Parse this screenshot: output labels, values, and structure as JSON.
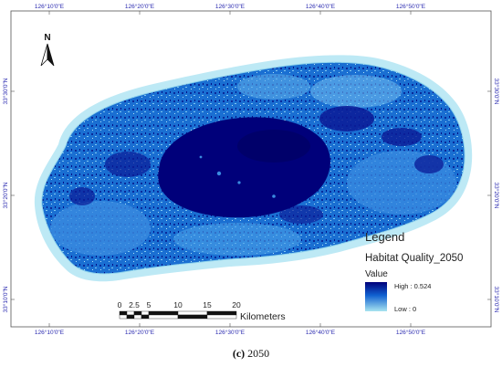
{
  "top_labels": [
    "126°10'0\"E",
    "126°20'0\"E",
    "126°30'0\"E",
    "126°40'0\"E",
    "126°50'0\"E"
  ],
  "bottom_labels": [
    "126°10'0\"E",
    "126°20'0\"E",
    "126°30'0\"E",
    "126°40'0\"E",
    "126°50'0\"E"
  ],
  "left_labels": [
    "33°30'0\"N",
    "33°20'0\"N",
    "33°10'0\"N"
  ],
  "right_labels": [
    "33°30'0\"N",
    "33°20'0\"N",
    "33°10'0\"N"
  ],
  "north_arrow": {
    "letter": "N"
  },
  "legend": {
    "title": "Legend",
    "layer": "Habitat Quality_2050",
    "value_label": "Value",
    "high": "High : 0.524",
    "low": "Low : 0",
    "high_value": 0.524,
    "low_value": 0,
    "colors": {
      "high": "#00007a",
      "mid": "#1060d0",
      "low": "#a8e4f0"
    }
  },
  "scale_bar": {
    "ticks": [
      "0",
      "2.5",
      "5",
      "10",
      "15",
      "20"
    ],
    "unit": "Kilometers"
  },
  "caption": {
    "letter": "(c)",
    "text": "2050"
  },
  "colors": {
    "coast": "#bde9f5",
    "mid_blue": "#1a6fd2",
    "deep": "#00007a",
    "coord_text": "#2a2ab0"
  }
}
